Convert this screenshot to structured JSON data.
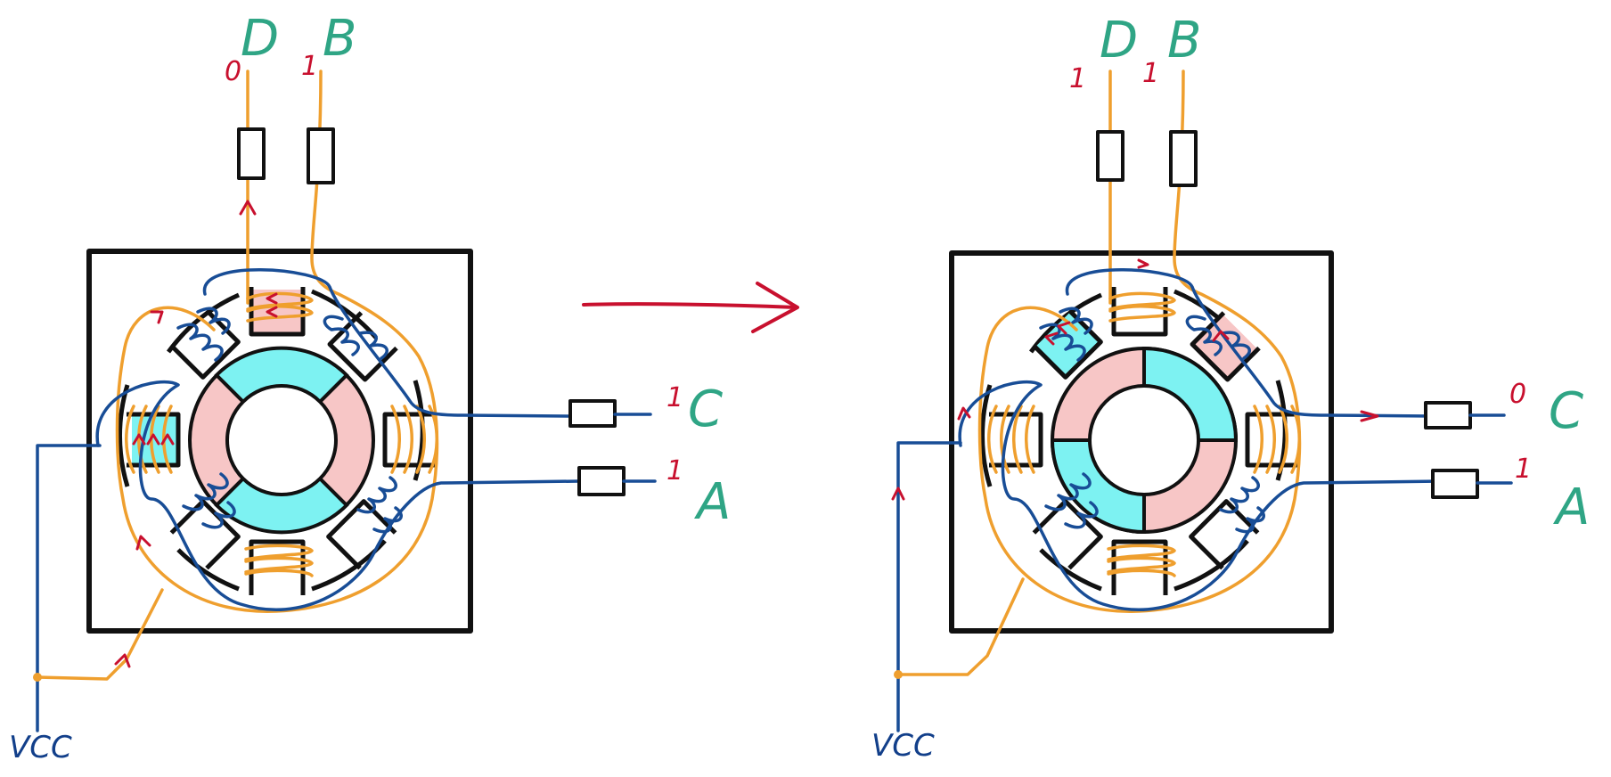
{
  "colors": {
    "label_green": "#2fa585",
    "signal_red": "#c8102e",
    "yellow_wire": "#ef9f2e",
    "blue_wire": "#184d96",
    "pole_active_blue": "#7df2f2",
    "pole_active_pink": "#f7c6c6",
    "rotor_blue": "#7df2f2",
    "rotor_pink": "#f7c6c6"
  },
  "left_state": {
    "terminal_D_label": "D",
    "terminal_B_label": "B",
    "terminal_C_label": "C",
    "terminal_A_label": "A",
    "D_value": "0",
    "B_value": "1",
    "C_value": "1",
    "A_value": "1",
    "supply_label": "VCC"
  },
  "right_state": {
    "terminal_D_label": "D",
    "terminal_B_label": "B",
    "terminal_C_label": "C",
    "terminal_A_label": "A",
    "D_value": "1",
    "B_value": "1",
    "C_value": "0",
    "A_value": "1",
    "supply_label": "VCC"
  },
  "icons": {
    "transition_arrow": "arrow-right-icon",
    "motor": "stepper-motor-icon",
    "resistor": "resistor-icon"
  }
}
